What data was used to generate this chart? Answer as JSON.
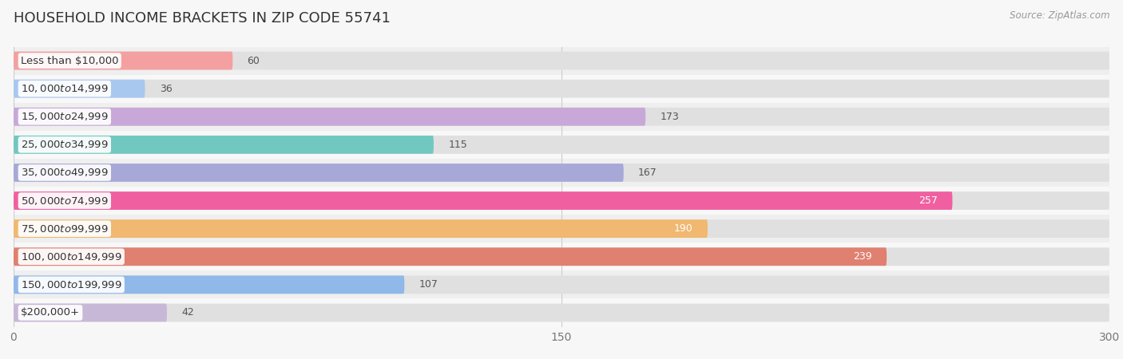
{
  "title": "HOUSEHOLD INCOME BRACKETS IN ZIP CODE 55741",
  "source": "Source: ZipAtlas.com",
  "categories": [
    "Less than $10,000",
    "$10,000 to $14,999",
    "$15,000 to $24,999",
    "$25,000 to $34,999",
    "$35,000 to $49,999",
    "$50,000 to $74,999",
    "$75,000 to $99,999",
    "$100,000 to $149,999",
    "$150,000 to $199,999",
    "$200,000+"
  ],
  "values": [
    60,
    36,
    173,
    115,
    167,
    257,
    190,
    239,
    107,
    42
  ],
  "bar_colors": [
    "#F4A0A0",
    "#A8C8F0",
    "#C8A8D8",
    "#70C8C0",
    "#A8A8D8",
    "#F060A0",
    "#F0B870",
    "#E08070",
    "#90B8E8",
    "#C8B8D8"
  ],
  "background_color": "#f7f7f7",
  "xlim": [
    0,
    300
  ],
  "xticks": [
    0,
    150,
    300
  ],
  "title_fontsize": 13,
  "label_fontsize": 9.5,
  "value_fontsize": 9,
  "bar_height": 0.65,
  "row_bg_colors": [
    "#efefef",
    "#f8f8f8"
  ]
}
